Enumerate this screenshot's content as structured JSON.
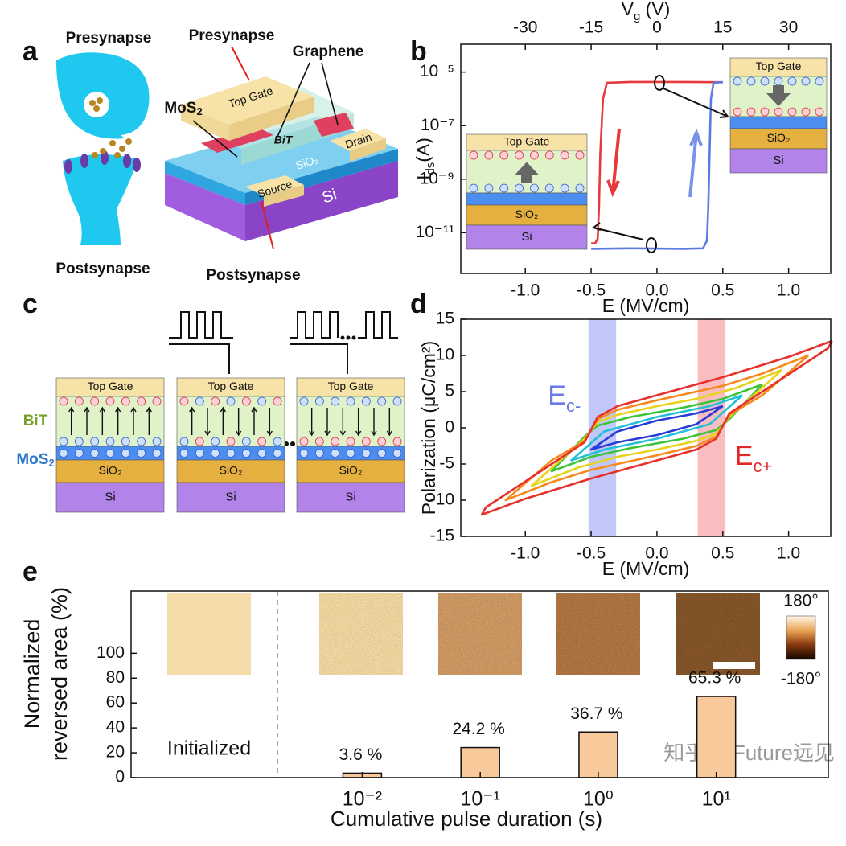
{
  "panel_labels": [
    "a",
    "b",
    "c",
    "d",
    "e"
  ],
  "panel_a": {
    "synapse_pre": "Presynapse",
    "synapse_post": "Postsynapse",
    "presynapse": "Presynapse",
    "graphene": "Graphene",
    "mos2_main": "MoS",
    "mos2_sub": "2",
    "top_gate": "Top Gate",
    "bit": "BiT",
    "drain": "Drain",
    "sio2": "SiO₂",
    "source": "Source",
    "si": "Si",
    "postsynapse": "Postsynapse"
  },
  "panel_c": {
    "bit": "BiT",
    "mos2_main": "MoS",
    "mos2_sub": "2",
    "stacks": [
      {
        "layers": [
          "Top Gate",
          "SiO₂",
          "Si"
        ]
      },
      {
        "layers": [
          "Top Gate",
          "SiO₂",
          "Si"
        ]
      },
      {
        "layers": [
          "Top Gate",
          "SiO₂",
          "Si"
        ]
      }
    ]
  },
  "watermark": "知乎 @Future远见",
  "chart_data": [
    {
      "type": "line",
      "xlabel": "E (MV/cm)",
      "x2label_main": "V",
      "x2label_sub": "g",
      "x2label_unit": " (V)",
      "ylabel_main": "I",
      "ylabel_sub": "ds",
      "ylabel_unit": "(A)",
      "xlim": [
        -1.49,
        1.32
      ],
      "xticks": [
        {
          "value": -1,
          "label": "-1.0"
        },
        -0.5,
        {
          "value": 0,
          "label": "0.0"
        },
        0.5,
        {
          "value": 1,
          "label": "1.0"
        }
      ],
      "x2lim": [
        -44.7,
        39.6
      ],
      "x2ticks": [
        -30,
        -15,
        0,
        15,
        30
      ],
      "yscale": "log",
      "ylim": [
        3e-13,
        0.00011
      ],
      "yticks": [
        {
          "value": 1e-11,
          "label": "10⁻¹¹"
        },
        {
          "value": 1e-09,
          "label": "10⁻⁹"
        },
        {
          "value": 1e-07,
          "label": "10⁻⁷"
        },
        {
          "value": 1e-05,
          "label": "10⁻⁵"
        }
      ],
      "series": [
        {
          "color": "#e8383a",
          "x": [
            0.5,
            0.2,
            -0.2,
            -0.38,
            -0.41,
            -0.43,
            -0.44,
            -0.45,
            -0.47,
            -0.5
          ],
          "values": [
            4.2e-06,
            4.3e-06,
            4.3e-06,
            4e-06,
            1e-06,
            1e-08,
            1e-10,
            6e-12,
            4e-12,
            4e-12
          ]
        },
        {
          "color": "#5b7be0",
          "x": [
            -0.5,
            -0.2,
            0.2,
            0.35,
            0.38,
            0.39,
            0.4,
            0.41,
            0.43,
            0.5
          ],
          "values": [
            2.5e-12,
            2.6e-12,
            2.5e-12,
            2.6e-12,
            5e-12,
            1e-10,
            1e-08,
            1e-06,
            4e-06,
            4.2e-06
          ]
        }
      ],
      "insets": [
        {
          "layers": [
            "Top Gate",
            "SiO₂",
            "Si"
          ]
        },
        {
          "layers": [
            "Top Gate",
            "SiO₂",
            "Si"
          ]
        }
      ]
    },
    {
      "type": "line",
      "xlabel": "E (MV/cm)",
      "ylabel": "Polarization (μC/cm²)",
      "xlim": [
        -1.49,
        1.32
      ],
      "xticks": [
        {
          "value": -1,
          "label": "-1.0"
        },
        -0.5,
        {
          "value": 0,
          "label": "0.0"
        },
        0.5,
        {
          "value": 1,
          "label": "1.0"
        }
      ],
      "ylim": [
        -15,
        15
      ],
      "yticks": [
        -15,
        -10,
        -5,
        0,
        5,
        10,
        15
      ],
      "bands": [
        {
          "label_main": "E",
          "label_sub": "c-",
          "range": [
            -0.52,
            -0.31
          ],
          "color": "#8e9bf0"
        },
        {
          "label_main": "E",
          "label_sub": "c+",
          "range": [
            0.31,
            0.52
          ],
          "color": "#f4868c"
        }
      ],
      "series": [
        {
          "color": "#2a3cd8",
          "x": [
            0.5,
            0.3,
            0,
            -0.3,
            -0.5,
            -0.3,
            0,
            0.3,
            0.5
          ],
          "values": [
            3,
            2,
            1,
            -0.5,
            -3,
            -2,
            -1,
            0.5,
            3
          ]
        },
        {
          "color": "#22c0d8",
          "x": [
            0.65,
            0.4,
            0,
            -0.4,
            -0.65,
            -0.4,
            0,
            0.4,
            0.65
          ],
          "values": [
            4.5,
            3,
            1.5,
            -0.5,
            -4.5,
            -3,
            -1.5,
            0.5,
            4.5
          ]
        },
        {
          "color": "#3cc43c",
          "x": [
            0.8,
            0.5,
            0.2,
            -0.2,
            -0.45,
            -0.55,
            -0.8,
            -0.5,
            -0.2,
            0.2,
            0.45,
            0.55,
            0.8
          ],
          "values": [
            6,
            4,
            2.8,
            1.5,
            0.3,
            -1.2,
            -6,
            -4,
            -2.8,
            -1.5,
            -0.3,
            1.2,
            6
          ]
        },
        {
          "color": "#e6d41c",
          "x": [
            0.95,
            0.6,
            0.3,
            0,
            -0.3,
            -0.45,
            -0.55,
            -0.95,
            -0.6,
            -0.3,
            0,
            0.3,
            0.45,
            0.55,
            0.95
          ],
          "values": [
            8,
            5.5,
            4,
            3,
            1.8,
            0.8,
            -1.5,
            -8,
            -5.5,
            -4,
            -3,
            -1.8,
            -0.8,
            1.5,
            8
          ]
        },
        {
          "color": "#f58a1f",
          "x": [
            1.15,
            0.8,
            0.5,
            0.3,
            0,
            -0.3,
            -0.45,
            -0.55,
            -0.8,
            -1.15,
            -0.8,
            -0.5,
            -0.3,
            0,
            0.3,
            0.45,
            0.55,
            0.8,
            1.15
          ],
          "values": [
            10,
            7.5,
            5.8,
            5,
            3.8,
            2.5,
            1.2,
            -1.8,
            -4.5,
            -10,
            -7.5,
            -5.8,
            -5,
            -3.8,
            -2.5,
            -1.2,
            1.8,
            4.5,
            10
          ]
        },
        {
          "color": "#e8302a",
          "x": [
            1.33,
            1.0,
            0.5,
            0.3,
            0,
            -0.3,
            -0.45,
            -0.55,
            -0.8,
            -1.3,
            -1.33,
            -1.0,
            -0.5,
            -0.3,
            0,
            0.3,
            0.45,
            0.55,
            0.8,
            1.3,
            1.33
          ],
          "values": [
            12,
            9.8,
            7,
            6,
            4.5,
            3,
            1.5,
            -2,
            -5,
            -11,
            -12,
            -9.8,
            -7,
            -6,
            -4.5,
            -3,
            -1.5,
            2,
            5,
            11,
            12
          ]
        }
      ]
    },
    {
      "type": "bar",
      "xlabel": "Cumulative pulse duration (s)",
      "ylabel": [
        "Normalized",
        "reversed area (%)"
      ],
      "xscale": "log",
      "xlim": [
        0.00011,
        89
      ],
      "xticks": [
        {
          "value": 0.01,
          "label": "10⁻²"
        },
        {
          "value": 0.1,
          "label": "10⁻¹"
        },
        {
          "value": 1,
          "label": "10⁰"
        },
        {
          "value": 10,
          "label": "10¹"
        }
      ],
      "ylim": [
        0,
        150
      ],
      "yticks": [
        0,
        20,
        40,
        60,
        80,
        100
      ],
      "x": [
        0.01,
        0.1,
        1,
        10
      ],
      "values": [
        3.6,
        24.2,
        36.7,
        65.3
      ],
      "value_labels": [
        "3.6 %",
        "24.2 %",
        "36.7 %",
        "65.3 %"
      ],
      "color": "#f8c99a",
      "annotation": "Initialized",
      "colorbar_labels": [
        "180°",
        "-180°"
      ]
    }
  ]
}
